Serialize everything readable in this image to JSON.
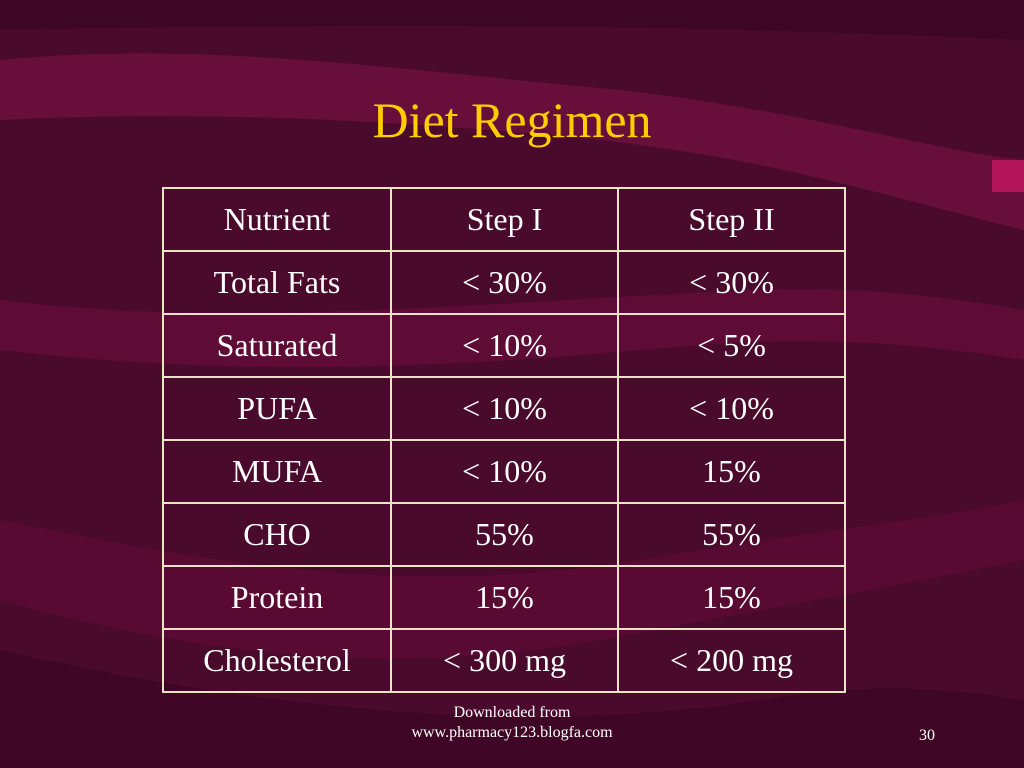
{
  "slide": {
    "title": "Diet Regimen",
    "page_number": "30"
  },
  "footer": {
    "line1": "Downloaded from",
    "line2": "www.pharmacy123.blogfa.com"
  },
  "table": {
    "headers": [
      "Nutrient",
      "Step I",
      "Step II"
    ],
    "rows": [
      [
        "Total Fats",
        "< 30%",
        "< 30%"
      ],
      [
        "Saturated",
        "< 10%",
        "< 5%"
      ],
      [
        "PUFA",
        "< 10%",
        "< 10%"
      ],
      [
        "MUFA",
        "< 10%",
        "15%"
      ],
      [
        "CHO",
        "55%",
        "55%"
      ],
      [
        "Protein",
        "15%",
        "15%"
      ],
      [
        "Cholesterol",
        "< 300 mg",
        "< 200 mg"
      ]
    ]
  },
  "colors": {
    "background": "#4a0a2c",
    "title": "#ffcc00",
    "text": "#ffffff",
    "grid": "#ece2c8"
  }
}
